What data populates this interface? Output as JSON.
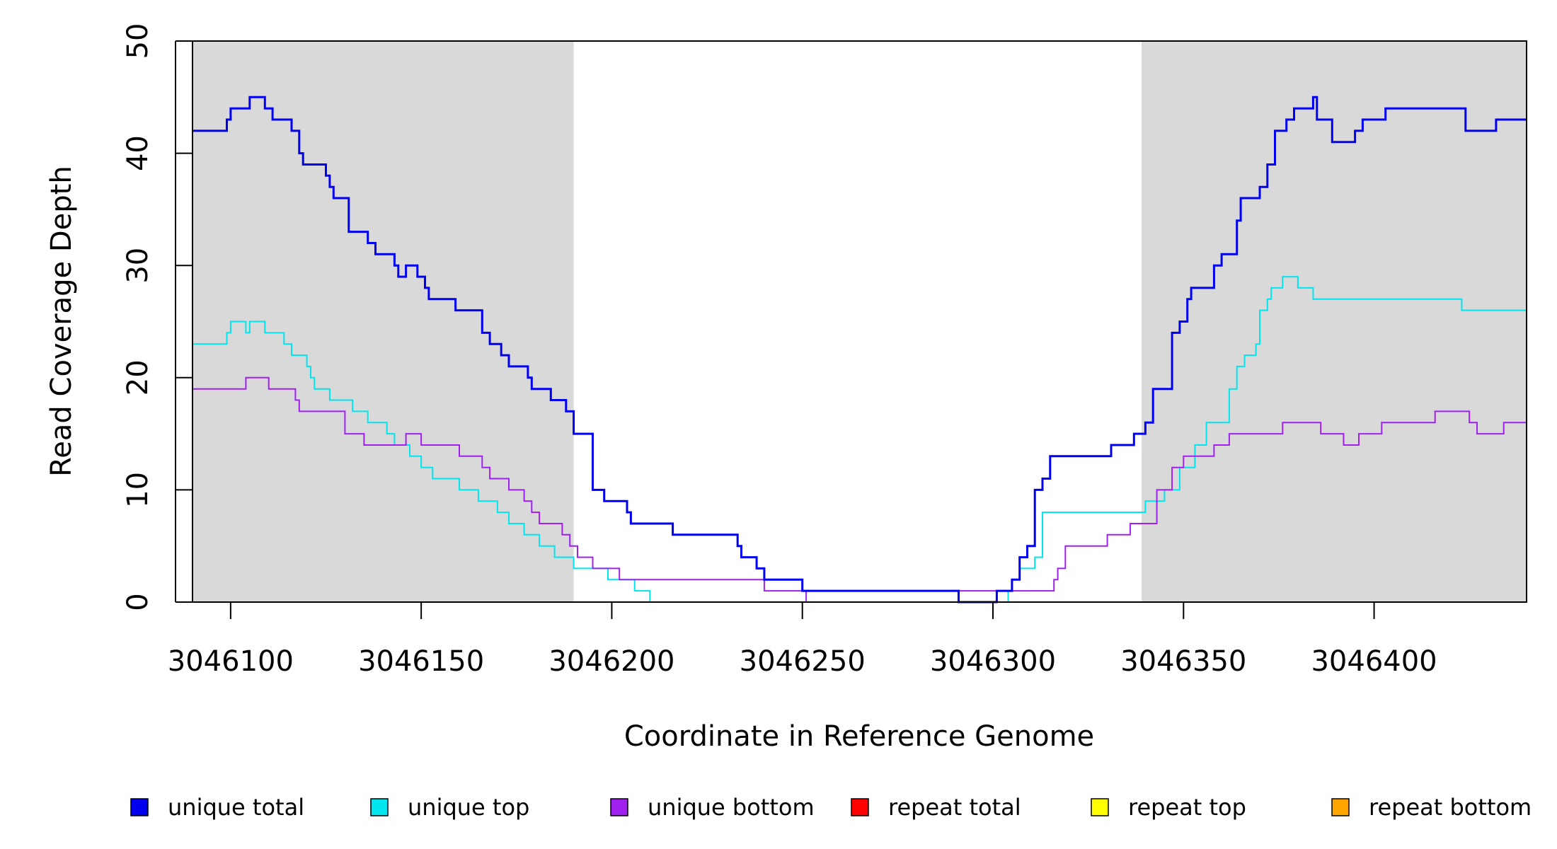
{
  "chart_data": {
    "type": "line",
    "step": true,
    "title": "",
    "xlabel": "Coordinate in Reference Genome",
    "ylabel": "Read Coverage Depth",
    "xlim": [
      3046090,
      3046440
    ],
    "ylim": [
      0,
      50
    ],
    "x_ticks": [
      3046100,
      3046150,
      3046200,
      3046250,
      3046300,
      3046350,
      3046400
    ],
    "x_tick_labels": [
      "3046100",
      "3046150",
      "3046200",
      "3046250",
      "3046300",
      "3046350",
      "3046400"
    ],
    "y_ticks": [
      0,
      10,
      20,
      30,
      40,
      50
    ],
    "y_tick_labels": [
      "0",
      "10",
      "20",
      "30",
      "40",
      "50"
    ],
    "shaded_regions": [
      {
        "x": [
          3046090,
          3046190
        ],
        "color": "#d9d9d9"
      },
      {
        "x": [
          3046339,
          3046440
        ],
        "color": "#d9d9d9"
      }
    ],
    "legend_position": "bottom",
    "series": [
      {
        "name": "unique total",
        "color": "#0000ee",
        "x": [
          3046090,
          3046099,
          3046100,
          3046105,
          3046109,
          3046111,
          3046116,
          3046118,
          3046119,
          3046125,
          3046126,
          3046127,
          3046131,
          3046136,
          3046138,
          3046143,
          3046144,
          3046146,
          3046149,
          3046151,
          3046152,
          3046159,
          3046166,
          3046168,
          3046171,
          3046173,
          3046178,
          3046179,
          3046184,
          3046188,
          3046190,
          3046195,
          3046198,
          3046204,
          3046205,
          3046216,
          3046233,
          3046234,
          3046238,
          3046240,
          3046250,
          3046291,
          3046301,
          3046305,
          3046307,
          3046309,
          3046311,
          3046313,
          3046315,
          3046331,
          3046337,
          3046340,
          3046342,
          3046347,
          3046349,
          3046351,
          3046352,
          3046358,
          3046360,
          3046364,
          3046365,
          3046370,
          3046372,
          3046374,
          3046377,
          3046379,
          3046384,
          3046385,
          3046389,
          3046395,
          3046397,
          3046403,
          3046414,
          3046424,
          3046432,
          3046440
        ],
        "y": [
          42,
          43,
          44,
          45,
          44,
          43,
          42,
          40,
          39,
          38,
          37,
          36,
          33,
          32,
          31,
          30,
          29,
          30,
          29,
          28,
          27,
          26,
          24,
          23,
          22,
          21,
          20,
          19,
          18,
          17,
          15,
          10,
          9,
          8,
          7,
          6,
          5,
          4,
          3,
          2,
          1,
          0,
          1,
          2,
          4,
          5,
          10,
          11,
          13,
          14,
          15,
          16,
          19,
          24,
          25,
          27,
          28,
          30,
          31,
          34,
          36,
          37,
          39,
          42,
          43,
          44,
          45,
          43,
          41,
          42,
          43,
          44,
          44,
          42,
          43,
          43
        ]
      },
      {
        "name": "unique top",
        "color": "#00e5ee",
        "x": [
          3046090,
          3046099,
          3046100,
          3046104,
          3046105,
          3046109,
          3046114,
          3046116,
          3046120,
          3046121,
          3046122,
          3046126,
          3046132,
          3046136,
          3046141,
          3046143,
          3046147,
          3046150,
          3046153,
          3046160,
          3046165,
          3046170,
          3046173,
          3046177,
          3046181,
          3046185,
          3046190,
          3046199,
          3046206,
          3046210,
          3046216,
          3046228,
          3046234,
          3046240,
          3046253,
          3046291,
          3046304,
          3046305,
          3046307,
          3046311,
          3046313,
          3046340,
          3046345,
          3046349,
          3046353,
          3046356,
          3046362,
          3046364,
          3046366,
          3046369,
          3046370,
          3046372,
          3046373,
          3046376,
          3046380,
          3046382,
          3046384,
          3046385,
          3046387,
          3046390,
          3046420,
          3046423,
          3046440
        ],
        "y": [
          23,
          24,
          25,
          24,
          25,
          24,
          23,
          22,
          21,
          20,
          19,
          18,
          17,
          16,
          15,
          14,
          13,
          12,
          11,
          10,
          9,
          8,
          7,
          6,
          5,
          4,
          3,
          2,
          1,
          0,
          0,
          0,
          0,
          0,
          0,
          0,
          1,
          2,
          3,
          4,
          8,
          9,
          10,
          12,
          14,
          16,
          19,
          21,
          22,
          23,
          26,
          27,
          28,
          29,
          28,
          28,
          27,
          27,
          27,
          27,
          27,
          26,
          27
        ]
      },
      {
        "name": "unique bottom",
        "color": "#a020f0",
        "x": [
          3046090,
          3046104,
          3046110,
          3046117,
          3046118,
          3046130,
          3046135,
          3046146,
          3046150,
          3046160,
          3046166,
          3046168,
          3046173,
          3046177,
          3046179,
          3046181,
          3046187,
          3046189,
          3046191,
          3046195,
          3046202,
          3046230,
          3046240,
          3046251,
          3046291,
          3046305,
          3046314,
          3046316,
          3046317,
          3046319,
          3046330,
          3046336,
          3046343,
          3046347,
          3046350,
          3046358,
          3046362,
          3046376,
          3046386,
          3046392,
          3046396,
          3046402,
          3046416,
          3046425,
          3046427,
          3046434,
          3046440
        ],
        "y": [
          19,
          20,
          19,
          18,
          17,
          15,
          14,
          15,
          14,
          13,
          12,
          11,
          10,
          9,
          8,
          7,
          6,
          5,
          4,
          3,
          2,
          2,
          1,
          0,
          1,
          1,
          1,
          2,
          3,
          5,
          6,
          7,
          10,
          12,
          13,
          14,
          15,
          16,
          15,
          14,
          15,
          16,
          17,
          16,
          15,
          16,
          16
        ]
      },
      {
        "name": "repeat total",
        "color": "#ff0000",
        "x": [
          3046090,
          3046440
        ],
        "y": [
          0,
          0
        ]
      },
      {
        "name": "repeat top",
        "color": "#ffff00",
        "x": [
          3046090,
          3046440
        ],
        "y": [
          0,
          0
        ]
      },
      {
        "name": "repeat bottom",
        "color": "#ffa500",
        "x": [
          3046090,
          3046440
        ],
        "y": [
          0,
          0
        ]
      }
    ]
  }
}
